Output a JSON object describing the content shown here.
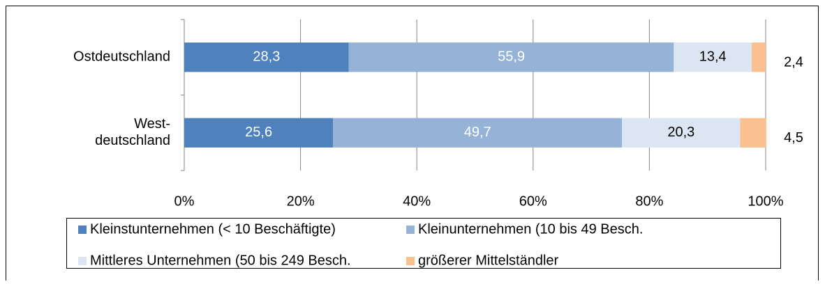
{
  "chart_data": {
    "type": "stacked_barh",
    "categories": [
      "Ostdeutschland",
      "West-\ndeutschland"
    ],
    "series": [
      {
        "name": "Kleinstunternehmen (< 10 Beschäftigte)",
        "color": "#4f81bd",
        "label_color": "#ffffff",
        "values": [
          28.3,
          25.6
        ],
        "value_labels": [
          "28,3",
          "25,6"
        ]
      },
      {
        "name": "Kleinunternehmen (10 bis 49 Besch.",
        "color": "#95b3d7",
        "label_color": "#ffffff",
        "values": [
          55.9,
          49.7
        ],
        "value_labels": [
          "55,9",
          "49,7"
        ]
      },
      {
        "name": "Mittleres Unternehmen (50 bis 249 Besch.",
        "color": "#dce6f2",
        "label_color": "#000000",
        "values": [
          13.4,
          20.3
        ],
        "value_labels": [
          "13,4",
          "20,3"
        ]
      },
      {
        "name": "größerer Mittelständler",
        "color": "#fac090",
        "label_color": "#000000",
        "values": [
          2.4,
          4.5
        ],
        "value_labels": [
          "2,4",
          "4,5"
        ]
      }
    ],
    "xlim": [
      0,
      100
    ],
    "xticks": [
      {
        "value": 0,
        "label": "0%"
      },
      {
        "value": 20,
        "label": "20%"
      },
      {
        "value": 40,
        "label": "40%"
      },
      {
        "value": 60,
        "label": "60%"
      },
      {
        "value": 80,
        "label": "80%"
      },
      {
        "value": 100,
        "label": "100%"
      }
    ],
    "grid": true
  }
}
